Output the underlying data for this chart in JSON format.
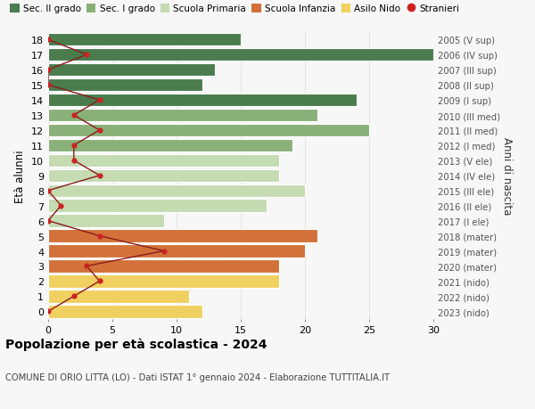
{
  "ages": [
    18,
    17,
    16,
    15,
    14,
    13,
    12,
    11,
    10,
    9,
    8,
    7,
    6,
    5,
    4,
    3,
    2,
    1,
    0
  ],
  "right_labels": [
    "2005 (V sup)",
    "2006 (IV sup)",
    "2007 (III sup)",
    "2008 (II sup)",
    "2009 (I sup)",
    "2010 (III med)",
    "2011 (II med)",
    "2012 (I med)",
    "2013 (V ele)",
    "2014 (IV ele)",
    "2015 (III ele)",
    "2016 (II ele)",
    "2017 (I ele)",
    "2018 (mater)",
    "2019 (mater)",
    "2020 (mater)",
    "2021 (nido)",
    "2022 (nido)",
    "2023 (nido)"
  ],
  "bar_values": [
    15,
    30,
    13,
    12,
    24,
    21,
    25,
    19,
    18,
    18,
    20,
    17,
    9,
    21,
    20,
    18,
    18,
    11,
    12
  ],
  "bar_colors": [
    "#4a7c4e",
    "#4a7c4e",
    "#4a7c4e",
    "#4a7c4e",
    "#4a7c4e",
    "#8ab07a",
    "#8ab07a",
    "#8ab07a",
    "#c5dbb2",
    "#c5dbb2",
    "#c5dbb2",
    "#c5dbb2",
    "#c5dbb2",
    "#d2723a",
    "#d2723a",
    "#d2723a",
    "#f0d060",
    "#f0d060",
    "#f0d060"
  ],
  "stranieri_values": [
    0,
    3,
    0,
    0,
    4,
    2,
    4,
    2,
    2,
    4,
    0,
    1,
    0,
    4,
    9,
    3,
    4,
    2,
    0
  ],
  "title_bold": "Popolazione per età scolastica - 2024",
  "subtitle": "COMUNE DI ORIO LITTA (LO) - Dati ISTAT 1° gennaio 2024 - Elaborazione TUTTITALIA.IT",
  "ylabel": "Età alunni",
  "right_ylabel": "Anni di nascita",
  "xlim": [
    0,
    30
  ],
  "xticks": [
    0,
    5,
    10,
    15,
    20,
    25,
    30
  ],
  "legend_labels": [
    "Sec. II grado",
    "Sec. I grado",
    "Scuola Primaria",
    "Scuola Infanzia",
    "Asilo Nido",
    "Stranieri"
  ],
  "legend_colors": [
    "#4a7c4e",
    "#8ab07a",
    "#c5dbb2",
    "#d2723a",
    "#f0d060",
    "#cc2222"
  ],
  "bg_color": "#f7f7f7",
  "bar_edge_color": "#ffffff",
  "stranieri_line_color": "#8b1a1a",
  "stranieri_dot_color": "#cc2222",
  "grid_color": "#cccccc"
}
